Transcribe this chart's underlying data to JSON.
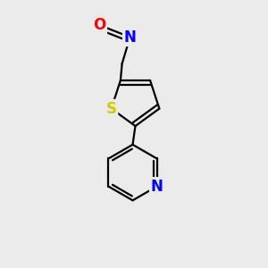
{
  "bg_color": "#ebebeb",
  "bond_color": "#000000",
  "atom_colors": {
    "O": "#ff0000",
    "N_oxime": "#0000ff",
    "S": "#cccc00",
    "N_pyridine": "#0000ff"
  },
  "bond_width": 1.6,
  "font_size_atoms": 12
}
